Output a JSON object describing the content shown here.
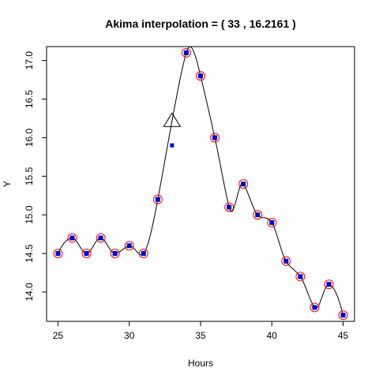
{
  "chart_data": {
    "type": "line",
    "title": "Akima interpolation = ( 33 , 16.2161 )",
    "xlabel": "Hours",
    "ylabel": "Y",
    "xlim": [
      24.2,
      45.8
    ],
    "ylim": [
      13.62,
      17.18
    ],
    "x_ticks": [
      25,
      30,
      35,
      40,
      45
    ],
    "x_tick_labels": [
      "25",
      "30",
      "35",
      "40",
      "45"
    ],
    "y_ticks": [
      14.0,
      14.5,
      15.0,
      15.5,
      16.0,
      16.5,
      17.0
    ],
    "y_tick_labels": [
      "14.0",
      "14.5",
      "15.0",
      "15.5",
      "16.0",
      "16.5",
      "17.0"
    ],
    "points_x": [
      25,
      26,
      27,
      28,
      29,
      30,
      31,
      32,
      34,
      35,
      36,
      37,
      38,
      39,
      40,
      41,
      42,
      43,
      44,
      45
    ],
    "points_y": [
      14.5,
      14.7,
      14.5,
      14.7,
      14.5,
      14.6,
      14.5,
      15.2,
      17.1,
      16.8,
      16.0,
      15.1,
      15.4,
      15.0,
      14.9,
      14.4,
      14.2,
      13.8,
      14.1,
      13.7
    ],
    "missing_point": {
      "x": 33,
      "y": 15.9
    },
    "interpolated_point": {
      "x": 33,
      "y": 16.2161
    },
    "colors": {
      "point_fill": "#0000cc",
      "point_ring": "#ff0000",
      "curve": "#000000",
      "marker": "#000000"
    },
    "grid": false
  }
}
